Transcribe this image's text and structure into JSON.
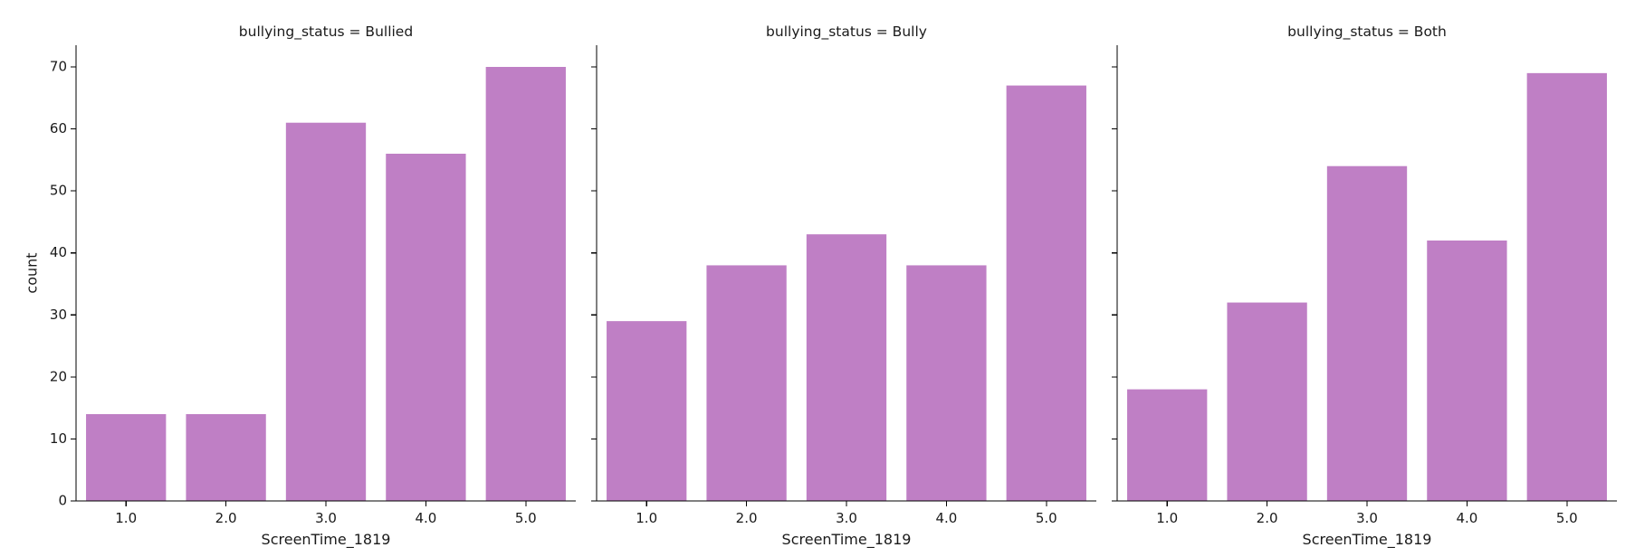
{
  "chart_data": {
    "type": "bar",
    "facet_variable": "bullying_status",
    "categories": [
      "1.0",
      "2.0",
      "3.0",
      "4.0",
      "5.0"
    ],
    "xlabel": "ScreenTime_1819",
    "ylabel": "count",
    "ylim": [
      0,
      73.5
    ],
    "yticks": [
      0,
      10,
      20,
      30,
      40,
      50,
      60,
      70
    ],
    "ytick_labels": [
      "0",
      "10",
      "20",
      "30",
      "40",
      "50",
      "60",
      "70"
    ],
    "sharey": true,
    "grid": false,
    "bar_color": "#bf7fc5",
    "panels": [
      {
        "title": "bullying_status = Bullied",
        "values": [
          14,
          14,
          61,
          56,
          70
        ]
      },
      {
        "title": "bullying_status = Bully",
        "values": [
          29,
          38,
          43,
          38,
          67
        ]
      },
      {
        "title": "bullying_status = Both",
        "values": [
          18,
          32,
          54,
          42,
          69
        ]
      }
    ]
  }
}
